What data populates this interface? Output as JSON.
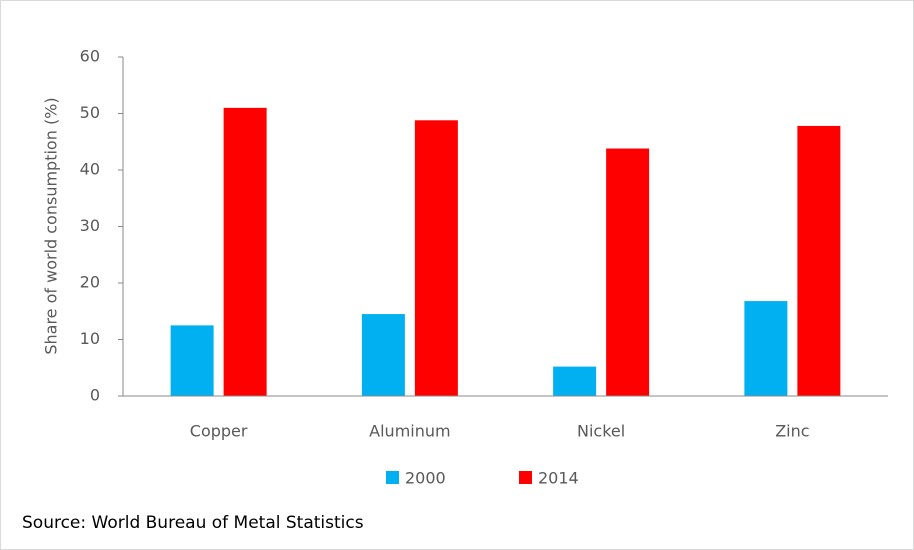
{
  "chart_data": {
    "type": "bar",
    "y_label": "Share of world consumption (%)",
    "categories": [
      "Copper",
      "Aluminum",
      "Nickel",
      "Zinc"
    ],
    "series": [
      {
        "name": "2000",
        "color": "#00b0f0",
        "values": [
          12.5,
          14.5,
          5.2,
          16.8
        ]
      },
      {
        "name": "2014",
        "color": "#ff0000",
        "values": [
          51,
          48.8,
          43.8,
          47.8
        ]
      }
    ],
    "ylim": [
      0,
      60
    ],
    "yticks": [
      0,
      10,
      20,
      30,
      40,
      50,
      60
    ],
    "source": "Source: World Bureau of Metal Statistics"
  }
}
